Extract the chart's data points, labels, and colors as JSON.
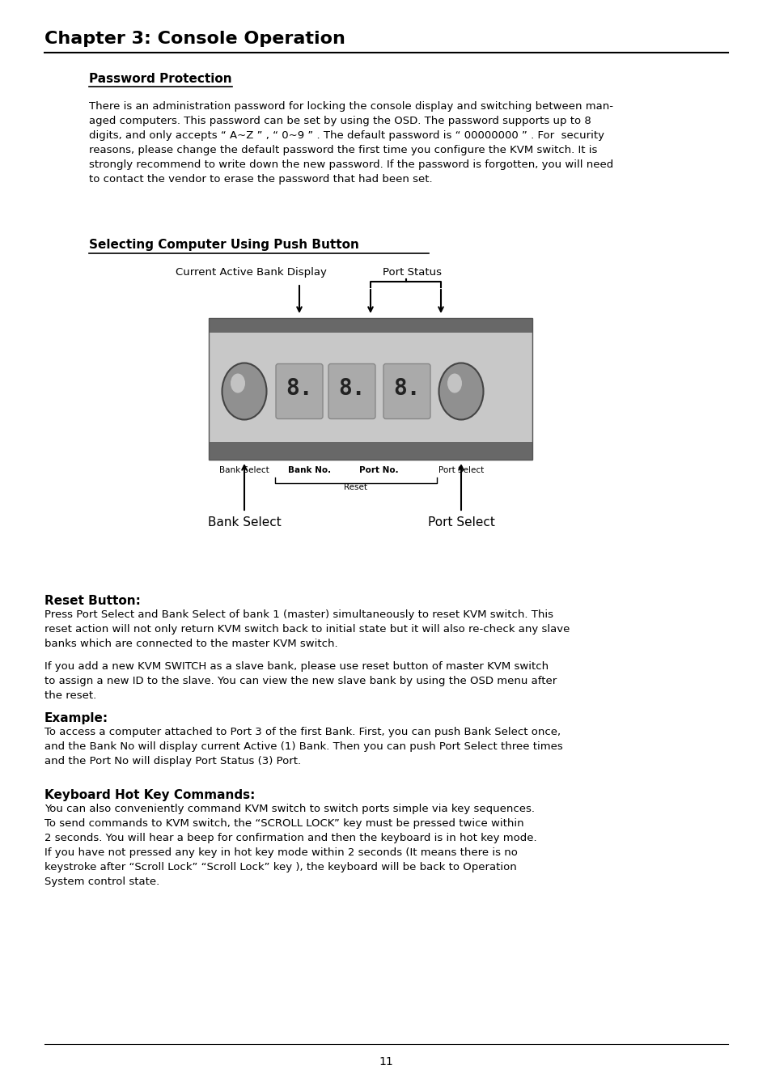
{
  "title": "Chapter 3: Console Operation",
  "bg_color": "#ffffff",
  "text_color": "#000000",
  "page_number": "11",
  "section1_heading": "Password Protection",
  "section1_body": "There is an administration password for locking the console display and switching between man-\naged computers. This password can be set by using the OSD. The password supports up to 8\ndigits, and only accepts “ A~Z ” , “ 0~9 ” . The default password is “ 00000000 ” . For  security\nreasons, please change the default password the first time you configure the KVM switch. It is\nstrongly recommend to write down the new password. If the password is forgotten, you will need\nto contact the vendor to erase the password that had been set.",
  "section2_heading": "Selecting Computer Using Push Button",
  "diagram_label1": "Current Active Bank Display",
  "diagram_label2": "Port Status",
  "diagram_label3": "Bank Select",
  "diagram_label4": "Bank No.",
  "diagram_label5": "Port No.",
  "diagram_label6": "Port Select",
  "diagram_label7": "Reset",
  "diagram_label8": "Bank Select",
  "diagram_label9": "Port Select",
  "section3_heading": "Reset Button:",
  "section3_body": "Press Port Select and Bank Select of bank 1 (master) simultaneously to reset KVM switch. This\nreset action will not only return KVM switch back to initial state but it will also re-check any slave\nbanks which are connected to the master KVM switch.",
  "section3_body2": "If you add a new KVM SWITCH as a slave bank, please use reset button of master KVM switch\nto assign a new ID to the slave. You can view the new slave bank by using the OSD menu after\nthe reset.",
  "section4_heading": "Example:",
  "section4_body": "To access a computer attached to Port 3 of the first Bank. First, you can push Bank Select once,\nand the Bank No will display current Active (1) Bank. Then you can push Port Select three times\nand the Port No will display Port Status (3) Port.",
  "section5_heading": "Keyboard Hot Key Commands:",
  "section5_body": "You can also conveniently command KVM switch to switch ports simple via key sequences.\nTo send commands to KVM switch, the “SCROLL LOCK” key must be pressed twice within\n2 seconds. You will hear a beep for confirmation and then the keyboard is in hot key mode.\nIf you have not pressed any key in hot key mode within 2 seconds (It means there is no\nkeystroke after “Scroll Lock” “Scroll Lock” key ), the keyboard will be back to Operation\nSystem control state."
}
